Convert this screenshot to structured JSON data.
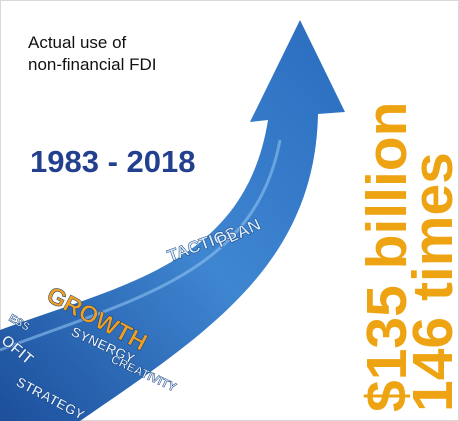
{
  "header": {
    "line1": "Actual use of",
    "line2": "non-financial FDI"
  },
  "period": "1983 - 2018",
  "highlights": {
    "amount": "$135 billion",
    "multiple": "146 times"
  },
  "arrow_words": [
    "GROWTH",
    "TACTICS",
    "PLAN",
    "SYNERGY",
    "CREATIVITY",
    "STRATEGY",
    "OFIT",
    "ESS"
  ]
}
